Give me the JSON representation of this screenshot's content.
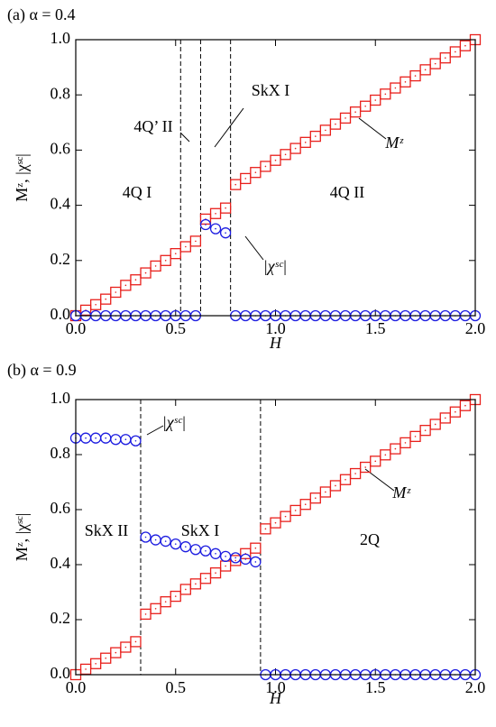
{
  "chart_data": [
    {
      "type": "scatter",
      "title": "(a) α = 0.4",
      "x_label": "H",
      "y_label": "Mᶻ, |χˢᶜ|",
      "x": [
        0,
        0.05,
        0.1,
        0.15,
        0.2,
        0.25,
        0.3,
        0.35,
        0.4,
        0.45,
        0.5,
        0.55,
        0.6,
        0.65,
        0.7,
        0.75,
        0.8,
        0.85,
        0.9,
        0.95,
        1.0,
        1.05,
        1.1,
        1.15,
        1.2,
        1.25,
        1.3,
        1.35,
        1.4,
        1.45,
        1.5,
        1.55,
        1.6,
        1.65,
        1.7,
        1.75,
        1.8,
        1.85,
        1.9,
        1.95,
        2.0
      ],
      "series": [
        {
          "name": "Mᶻ",
          "color": "#e8201c",
          "marker": "square",
          "values": [
            0,
            0.02,
            0.04,
            0.06,
            0.085,
            0.11,
            0.13,
            0.155,
            0.18,
            0.2,
            0.225,
            0.25,
            0.27,
            0.35,
            0.37,
            0.39,
            0.475,
            0.497,
            0.519,
            0.541,
            0.563,
            0.584,
            0.606,
            0.628,
            0.65,
            0.672,
            0.694,
            0.716,
            0.738,
            0.759,
            0.781,
            0.803,
            0.825,
            0.847,
            0.869,
            0.891,
            0.913,
            0.934,
            0.956,
            0.978,
            1.0
          ]
        },
        {
          "name": "|χˢᶜ|",
          "color": "#1c1ce0",
          "marker": "circle",
          "values": [
            0,
            0,
            0,
            0,
            0,
            0,
            0,
            0,
            0,
            0,
            0,
            0,
            0,
            0.33,
            0.315,
            0.3,
            0,
            0,
            0,
            0,
            0,
            0,
            0,
            0,
            0,
            0,
            0,
            0,
            0,
            0,
            0,
            0,
            0,
            0,
            0,
            0,
            0,
            0,
            0,
            0,
            0
          ]
        }
      ],
      "boundaries": [
        0.525,
        0.625,
        0.775
      ],
      "annotations": [
        "4Q’ II",
        "SkX I",
        "4Q I",
        "4Q II"
      ],
      "xlim": [
        0,
        2
      ],
      "ylim": [
        0,
        1
      ],
      "xticks": [
        {
          "value": 0,
          "label": "0.0"
        },
        {
          "value": 0.5,
          "label": "0.5"
        },
        {
          "value": 1,
          "label": "1.0"
        },
        {
          "value": 1.5,
          "label": "1.5"
        },
        {
          "value": 2,
          "label": "2.0"
        }
      ],
      "yticks": [
        {
          "value": 0,
          "label": "0.0"
        },
        {
          "value": 0.2,
          "label": "0.2"
        },
        {
          "value": 0.4,
          "label": "0.4"
        },
        {
          "value": 0.6,
          "label": "0.6"
        },
        {
          "value": 0.8,
          "label": "0.8"
        },
        {
          "value": 1,
          "label": "1.0"
        }
      ]
    },
    {
      "type": "scatter",
      "title": "(b) α = 0.9",
      "x_label": "H",
      "y_label": "Mᶻ, |χˢᶜ|",
      "x": [
        0,
        0.05,
        0.1,
        0.15,
        0.2,
        0.25,
        0.3,
        0.35,
        0.4,
        0.45,
        0.5,
        0.55,
        0.6,
        0.65,
        0.7,
        0.75,
        0.8,
        0.85,
        0.9,
        0.95,
        1.0,
        1.05,
        1.1,
        1.15,
        1.2,
        1.25,
        1.3,
        1.35,
        1.4,
        1.45,
        1.5,
        1.55,
        1.6,
        1.65,
        1.7,
        1.75,
        1.8,
        1.85,
        1.9,
        1.95,
        2.0
      ],
      "series": [
        {
          "name": "Mᶻ",
          "color": "#e8201c",
          "marker": "square",
          "values": [
            0,
            0.02,
            0.04,
            0.06,
            0.08,
            0.1,
            0.12,
            0.22,
            0.24,
            0.265,
            0.285,
            0.31,
            0.33,
            0.35,
            0.37,
            0.395,
            0.415,
            0.44,
            0.46,
            0.53,
            0.552,
            0.575,
            0.597,
            0.619,
            0.642,
            0.664,
            0.687,
            0.709,
            0.731,
            0.754,
            0.776,
            0.799,
            0.821,
            0.843,
            0.866,
            0.888,
            0.91,
            0.933,
            0.955,
            0.978,
            1.0
          ]
        },
        {
          "name": "|χˢᶜ|",
          "color": "#1c1ce0",
          "marker": "circle",
          "values": [
            0.86,
            0.86,
            0.86,
            0.86,
            0.855,
            0.855,
            0.85,
            0.5,
            0.49,
            0.485,
            0.475,
            0.465,
            0.455,
            0.45,
            0.44,
            0.43,
            0.425,
            0.42,
            0.41,
            0,
            0,
            0,
            0,
            0,
            0,
            0,
            0,
            0,
            0,
            0,
            0,
            0,
            0,
            0,
            0,
            0,
            0,
            0,
            0,
            0,
            0
          ]
        }
      ],
      "boundaries": [
        0.325,
        0.925
      ],
      "annotations": [
        "SkX II",
        "SkX I",
        "2Q"
      ],
      "xlim": [
        0,
        2
      ],
      "ylim": [
        0,
        1
      ],
      "xticks": [
        {
          "value": 0,
          "label": "0.0"
        },
        {
          "value": 0.5,
          "label": "0.5"
        },
        {
          "value": 1,
          "label": "1.0"
        },
        {
          "value": 1.5,
          "label": "1.5"
        },
        {
          "value": 2,
          "label": "2.0"
        }
      ],
      "yticks": [
        {
          "value": 0,
          "label": "0.0"
        },
        {
          "value": 0.2,
          "label": "0.2"
        },
        {
          "value": 0.4,
          "label": "0.4"
        },
        {
          "value": 0.6,
          "label": "0.6"
        },
        {
          "value": 0.8,
          "label": "0.8"
        },
        {
          "value": 1,
          "label": "1.0"
        }
      ]
    }
  ]
}
